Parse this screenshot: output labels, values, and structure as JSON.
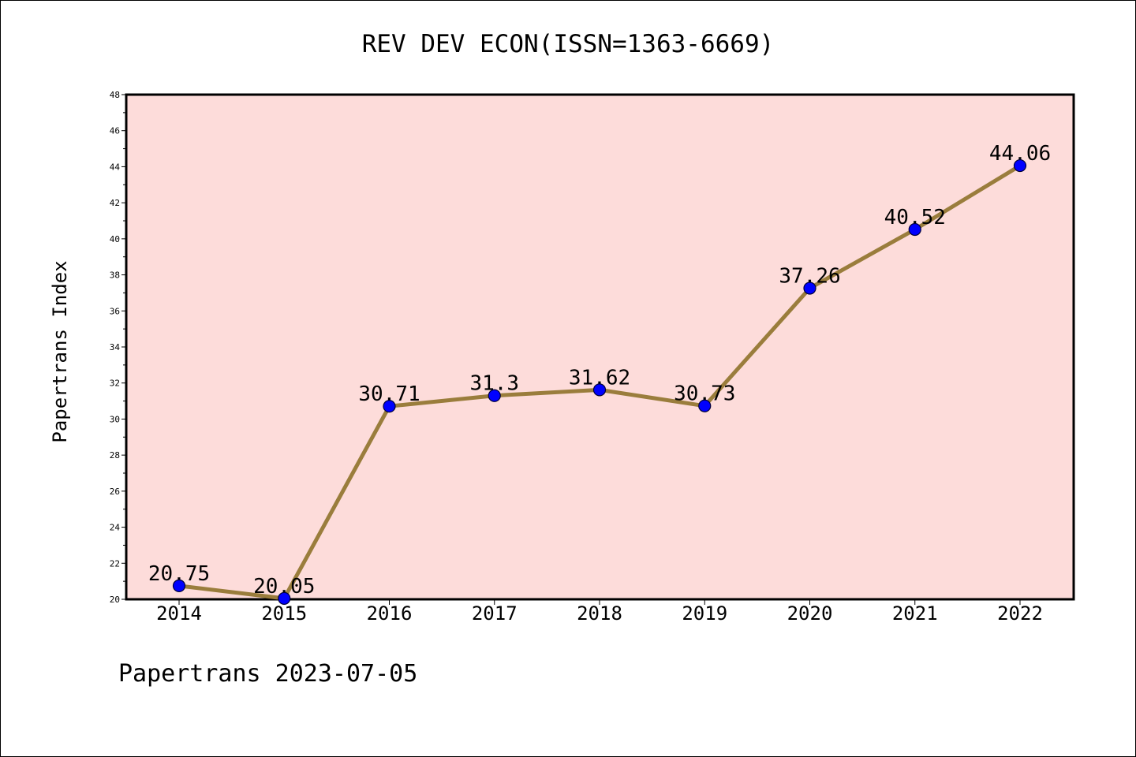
{
  "chart_data": {
    "type": "line",
    "title": "REV DEV ECON(ISSN=1363-6669)",
    "xlabel": "",
    "ylabel": "Papertrans Index",
    "categories": [
      "2014",
      "2015",
      "2016",
      "2017",
      "2018",
      "2019",
      "2020",
      "2021",
      "2022"
    ],
    "series": [
      {
        "values": [
          20.75,
          20.05,
          30.71,
          31.3,
          31.62,
          30.73,
          37.26,
          40.52,
          44.06
        ],
        "labels": [
          "20.75",
          "20.05",
          "30.71",
          "31.3",
          "31.62",
          "30.73",
          "37.26",
          "40.52",
          "44.06"
        ]
      }
    ],
    "ylim": [
      20,
      48
    ],
    "yticks": [
      "20",
      "22",
      "24",
      "26",
      "28",
      "30",
      "32",
      "34",
      "36",
      "38",
      "40",
      "42",
      "44",
      "46",
      "48"
    ],
    "grid": false,
    "legend": "none"
  },
  "footer": "Papertrans 2023-07-05",
  "colors": {
    "plot_background": "#fddcda",
    "line": "#9a7d3c",
    "marker": "#0000ff",
    "axes": "#000000"
  }
}
